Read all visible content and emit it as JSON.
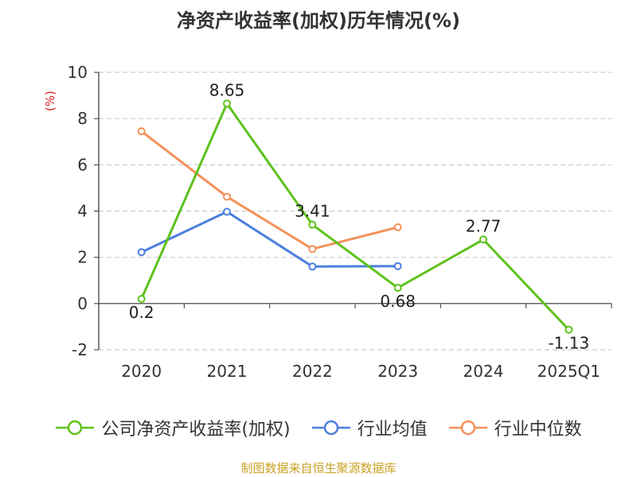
{
  "title": "净资产收益率(加权)历年情况(%)",
  "source_note": "制图数据来自恒生聚源数据库",
  "legend": [
    {
      "label": "公司净资产收益率(加权)",
      "color": "#5ec21c"
    },
    {
      "label": "行业均值",
      "color": "#4b7fdc"
    },
    {
      "label": "行业中位数",
      "color": "#f39159"
    }
  ],
  "chart_data": {
    "type": "line",
    "title": "净资产收益率(加权)历年情况(%)",
    "ylabel": "(%)",
    "xlabel": "",
    "categories": [
      "2020",
      "2021",
      "2022",
      "2023",
      "2024",
      "2025Q1"
    ],
    "ylim": [
      -2,
      10
    ],
    "yticks": [
      -2,
      0,
      2,
      4,
      6,
      8,
      10
    ],
    "grid": true,
    "legend_position": "bottom",
    "series": [
      {
        "name": "公司净资产收益率(加权)",
        "color": "#5ec21c",
        "values": [
          0.2,
          8.65,
          3.41,
          0.68,
          2.77,
          -1.13
        ],
        "data_labels": [
          "0.2",
          "8.65",
          "3.41",
          "0.68",
          "2.77",
          "-1.13"
        ]
      },
      {
        "name": "行业均值",
        "color": "#4b7fdc",
        "values": [
          2.22,
          3.97,
          1.6,
          1.62,
          null,
          null
        ]
      },
      {
        "name": "行业中位数",
        "color": "#f39159",
        "values": [
          7.45,
          4.62,
          2.36,
          3.3,
          null,
          null
        ]
      }
    ]
  }
}
